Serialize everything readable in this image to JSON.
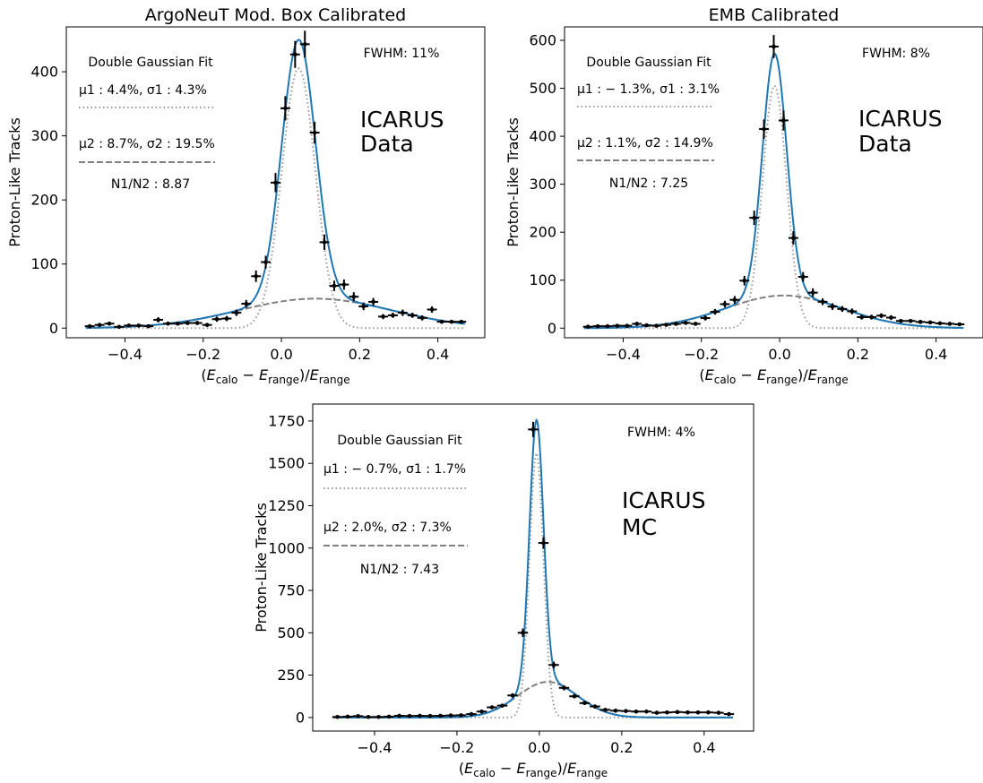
{
  "chart_data": [
    {
      "type": "scatter",
      "title": "ArgoNeuT Mod. Box Calibrated",
      "xlabel_parts": [
        "(",
        "E",
        "calo",
        " − ",
        "E",
        "range",
        ")/",
        "E",
        "range"
      ],
      "ylabel": "Proton-Like Tracks",
      "xlim": [
        -0.55,
        0.52
      ],
      "ylim": [
        -15,
        470
      ],
      "xticks": [
        -0.4,
        -0.2,
        0.0,
        0.2,
        0.4
      ],
      "xtick_labels": [
        "−0.4",
        "−0.2",
        "0.0",
        "0.2",
        "0.4"
      ],
      "yticks": [
        0,
        100,
        200,
        300,
        400
      ],
      "ytick_labels": [
        "0",
        "100",
        "200",
        "300",
        "400"
      ],
      "fit_title": "Double Gaussian Fit",
      "fwhm_label": "FWHM: 11%",
      "tag_lines": [
        "ICARUS",
        "Data"
      ],
      "component_1_label": "μ1 : 4.4%, σ1 : 4.3%",
      "component_2_label": "μ2 : 8.7%, σ2 : 19.5%",
      "ratio_label": "N1/N2 : 8.87",
      "fit": {
        "amp1": 405,
        "mu1": 0.044,
        "sigma1": 0.043,
        "amp2": 46,
        "mu2": 0.087,
        "sigma2": 0.195
      },
      "points": {
        "x": [
          -0.49,
          -0.465,
          -0.44,
          -0.415,
          -0.39,
          -0.365,
          -0.34,
          -0.315,
          -0.29,
          -0.265,
          -0.24,
          -0.215,
          -0.19,
          -0.165,
          -0.14,
          -0.115,
          -0.09,
          -0.065,
          -0.04,
          -0.015,
          0.01,
          0.035,
          0.06,
          0.085,
          0.11,
          0.135,
          0.16,
          0.185,
          0.21,
          0.235,
          0.26,
          0.285,
          0.31,
          0.335,
          0.36,
          0.385,
          0.41,
          0.435,
          0.46
        ],
        "y": [
          3,
          5,
          7,
          2,
          4,
          4,
          3,
          13,
          7,
          7,
          8,
          8,
          5,
          14,
          15,
          24,
          38,
          81,
          103,
          227,
          343,
          427,
          443,
          305,
          134,
          66,
          68,
          49,
          34,
          41,
          18,
          20,
          24,
          20,
          16,
          29,
          10,
          10,
          10
        ],
        "yerr": [
          2,
          2,
          3,
          2,
          2,
          2,
          2,
          4,
          3,
          3,
          3,
          3,
          2,
          4,
          4,
          5,
          6,
          9,
          10,
          15,
          19,
          21,
          21,
          17,
          12,
          8,
          8,
          7,
          6,
          6,
          4,
          4,
          5,
          4,
          4,
          5,
          3,
          3,
          3
        ]
      }
    },
    {
      "type": "scatter",
      "title": "EMB Calibrated",
      "xlabel_parts": [
        "(",
        "E",
        "calo",
        " − ",
        "E",
        "range",
        ")/",
        "E",
        "range"
      ],
      "ylabel": "Proton-Like Tracks",
      "xlim": [
        -0.55,
        0.52
      ],
      "ylim": [
        -20,
        628
      ],
      "xticks": [
        -0.4,
        -0.2,
        0.0,
        0.2,
        0.4
      ],
      "xtick_labels": [
        "−0.4",
        "−0.2",
        "0.0",
        "0.2",
        "0.4"
      ],
      "yticks": [
        0,
        100,
        200,
        300,
        400,
        500,
        600
      ],
      "ytick_labels": [
        "0",
        "100",
        "200",
        "300",
        "400",
        "500",
        "600"
      ],
      "fit_title": "Double Gaussian Fit",
      "fwhm_label": "FWHM: 8%",
      "tag_lines": [
        "ICARUS",
        "Data"
      ],
      "component_1_label": "μ1 : − 1.3%, σ1 : 3.1%",
      "component_2_label": "μ2 : 1.1%, σ2 : 14.9%",
      "ratio_label": "N1/N2 : 7.25",
      "fit": {
        "amp1": 505,
        "mu1": -0.013,
        "sigma1": 0.031,
        "amp2": 68,
        "mu2": 0.011,
        "sigma2": 0.149
      },
      "points": {
        "x": [
          -0.49,
          -0.465,
          -0.44,
          -0.415,
          -0.39,
          -0.365,
          -0.34,
          -0.315,
          -0.29,
          -0.265,
          -0.24,
          -0.215,
          -0.19,
          -0.165,
          -0.14,
          -0.115,
          -0.09,
          -0.065,
          -0.04,
          -0.015,
          0.01,
          0.035,
          0.06,
          0.085,
          0.11,
          0.135,
          0.16,
          0.185,
          0.21,
          0.235,
          0.26,
          0.285,
          0.31,
          0.335,
          0.36,
          0.385,
          0.41,
          0.435,
          0.46
        ],
        "y": [
          3,
          4,
          4,
          5,
          5,
          9,
          6,
          5,
          7,
          9,
          11,
          9,
          21,
          34,
          50,
          59,
          99,
          230,
          415,
          587,
          433,
          188,
          107,
          74,
          55,
          45,
          40,
          35,
          23,
          23,
          26,
          22,
          15,
          15,
          13,
          12,
          10,
          9,
          8
        ],
        "yerr": [
          2,
          2,
          2,
          2,
          2,
          3,
          2,
          2,
          3,
          3,
          3,
          3,
          5,
          6,
          7,
          8,
          10,
          15,
          20,
          24,
          21,
          14,
          10,
          9,
          7,
          7,
          6,
          6,
          5,
          5,
          5,
          5,
          4,
          4,
          4,
          3,
          3,
          3,
          3
        ]
      }
    },
    {
      "type": "scatter",
      "title": "",
      "xlabel_parts": [
        "(",
        "E",
        "calo",
        " − ",
        "E",
        "range",
        ")/",
        "E",
        "range"
      ],
      "ylabel": "Proton-Like Tracks",
      "xlim": [
        -0.55,
        0.52
      ],
      "ylim": [
        -80,
        1850
      ],
      "xticks": [
        -0.4,
        -0.2,
        0.0,
        0.2,
        0.4
      ],
      "xtick_labels": [
        "−0.4",
        "−0.2",
        "0.0",
        "0.2",
        "0.4"
      ],
      "yticks": [
        0,
        250,
        500,
        750,
        1000,
        1250,
        1500,
        1750
      ],
      "ytick_labels": [
        "0",
        "250",
        "500",
        "750",
        "1000",
        "1250",
        "1500",
        "1750"
      ],
      "fit_title": "Double Gaussian Fit",
      "fwhm_label": "FWHM: 4%",
      "tag_lines": [
        "ICARUS",
        "MC"
      ],
      "component_1_label": "μ1 : − 0.7%, σ1 : 1.7%",
      "component_2_label": "μ2 : 2.0%, σ2 : 7.3%",
      "ratio_label": "N1/N2 : 7.43",
      "fit": {
        "amp1": 1560,
        "mu1": -0.007,
        "sigma1": 0.017,
        "amp2": 210,
        "mu2": 0.02,
        "sigma2": 0.073
      },
      "points": {
        "x": [
          -0.49,
          -0.465,
          -0.44,
          -0.415,
          -0.39,
          -0.365,
          -0.34,
          -0.315,
          -0.29,
          -0.265,
          -0.24,
          -0.215,
          -0.19,
          -0.165,
          -0.14,
          -0.115,
          -0.09,
          -0.065,
          -0.04,
          -0.015,
          0.01,
          0.035,
          0.06,
          0.085,
          0.11,
          0.135,
          0.16,
          0.185,
          0.21,
          0.235,
          0.26,
          0.285,
          0.31,
          0.335,
          0.36,
          0.385,
          0.41,
          0.435,
          0.46
        ],
        "y": [
          3,
          5,
          8,
          3,
          3,
          5,
          10,
          9,
          10,
          9,
          10,
          12,
          13,
          20,
          35,
          60,
          70,
          130,
          500,
          1700,
          1030,
          310,
          175,
          125,
          85,
          65,
          45,
          40,
          38,
          35,
          35,
          28,
          30,
          32,
          30,
          30,
          30,
          28,
          20
        ],
        "yerr": [
          3,
          3,
          4,
          3,
          3,
          3,
          4,
          4,
          4,
          4,
          4,
          4,
          4,
          5,
          7,
          9,
          10,
          13,
          25,
          45,
          35,
          20,
          15,
          12,
          10,
          9,
          8,
          7,
          7,
          7,
          7,
          6,
          6,
          6,
          6,
          6,
          6,
          6,
          5
        ]
      }
    }
  ],
  "colors": {
    "fit": "#1f77b4",
    "component_1": "#999999",
    "component_2": "#808080",
    "points": "#000000"
  }
}
